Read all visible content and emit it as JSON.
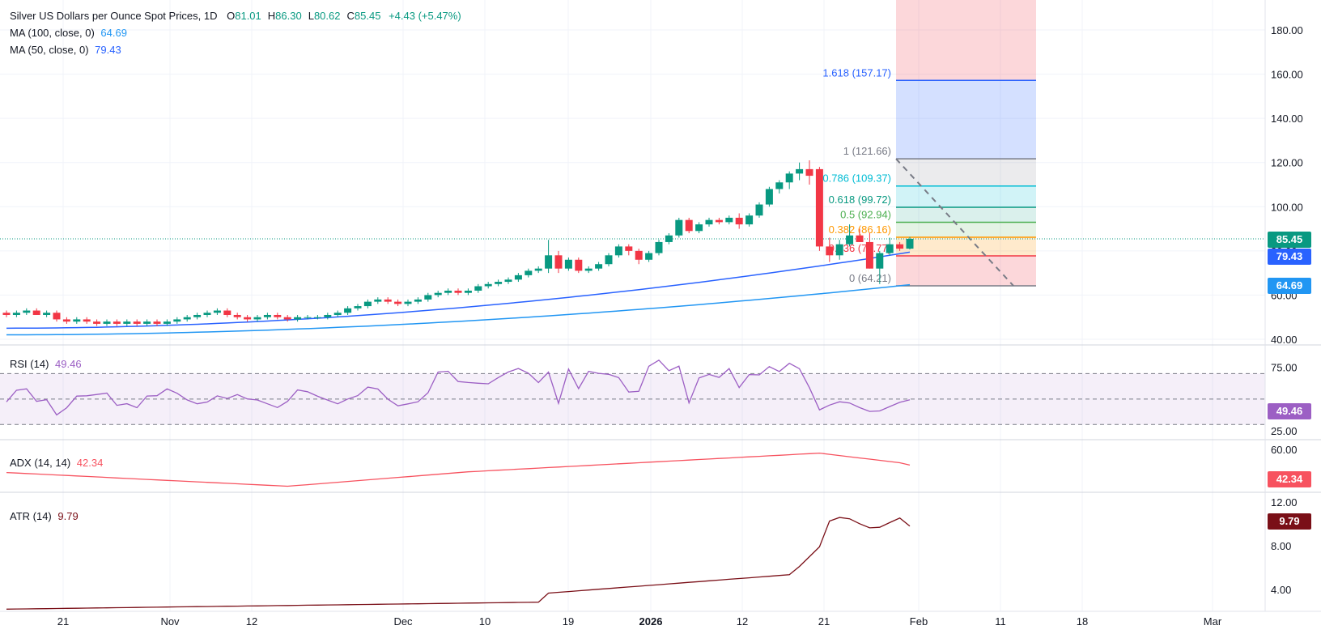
{
  "header": {
    "title": "Silver US Dollars per Ounce Spot Prices, 1D",
    "ohlc": [
      {
        "key": "O",
        "value": "81.01"
      },
      {
        "key": "H",
        "value": "86.30"
      },
      {
        "key": "L",
        "value": "80.62"
      },
      {
        "key": "C",
        "value": "85.45"
      }
    ],
    "change": "+4.43 (+5.47%)",
    "ma100_label": "MA (100, close, 0)",
    "ma100_value": "64.69",
    "ma50_label": "MA (50, close, 0)",
    "ma50_value": "79.43"
  },
  "colors": {
    "up": "#089981",
    "down": "#f23645",
    "ma50": "#2962ff",
    "ma100": "#2196f3",
    "rsi": "#9c5fc4",
    "adx": "#f7525f",
    "atr": "#7a0f17",
    "grid": "#f0f3fa"
  },
  "indicators": {
    "rsi": {
      "label": "RSI (14)",
      "value": "49.46"
    },
    "adx": {
      "label": "ADX (14, 14)",
      "value": "42.34"
    },
    "atr": {
      "label": "ATR (14)",
      "value": "9.79"
    }
  },
  "badges": {
    "price": "85.45",
    "ma50": "79.43",
    "ma100": "64.69",
    "rsi": "49.46",
    "adx": "42.34",
    "atr": "9.79"
  },
  "chart_data": {
    "type": "candlestick",
    "x_ticks": [
      "21",
      "Nov",
      "12",
      "Dec",
      "10",
      "19",
      "2026",
      "12",
      "21",
      "Feb",
      "11",
      "18",
      "Mar"
    ],
    "price_axis": {
      "ticks": [
        "40.00",
        "60.00",
        "80.00",
        "100.00",
        "120.00",
        "140.00",
        "160.00",
        "180.00"
      ],
      "ylim": [
        38,
        190
      ]
    },
    "rsi_axis": {
      "ticks": [
        "25.00",
        "75.00"
      ],
      "upper": 70,
      "middle": 50,
      "lower": 30
    },
    "adx_axis": {
      "ticks": [
        "60.00"
      ]
    },
    "atr_axis": {
      "ticks": [
        "4.00",
        "8.00",
        "12.00"
      ]
    },
    "fibonacci": [
      {
        "level": "1.618",
        "price": 157.17,
        "label": "1.618 (157.17)",
        "color": "#2962ff"
      },
      {
        "level": "1",
        "price": 121.66,
        "label": "1 (121.66)",
        "color": "#787b86"
      },
      {
        "level": "0.786",
        "price": 109.37,
        "label": "0.786 (109.37)",
        "color": "#00bcd4"
      },
      {
        "level": "0.618",
        "price": 99.72,
        "label": "0.618 (99.72)",
        "color": "#089981"
      },
      {
        "level": "0.5",
        "price": 92.94,
        "label": "0.5 (92.94)",
        "color": "#4caf50"
      },
      {
        "level": "0.382",
        "price": 86.16,
        "label": "0.382 (86.16)",
        "color": "#ff9800"
      },
      {
        "level": "0.236",
        "price": 77.77,
        "label": "0.236 (77.77)",
        "color": "#f23645"
      },
      {
        "level": "0",
        "price": 64.21,
        "label": "0 (64.21)",
        "color": "#787b86"
      }
    ],
    "candles": [
      [
        52,
        53,
        50,
        51
      ],
      [
        51,
        53,
        50,
        52
      ],
      [
        52,
        54,
        51,
        53
      ],
      [
        53,
        54,
        51,
        51
      ],
      [
        51,
        53,
        50,
        52
      ],
      [
        52,
        53,
        48,
        49
      ],
      [
        49,
        50,
        47,
        48
      ],
      [
        48,
        50,
        47,
        49
      ],
      [
        49,
        50,
        47,
        48
      ],
      [
        48,
        49,
        46,
        47
      ],
      [
        47,
        49,
        46,
        48
      ],
      [
        48,
        49,
        46,
        47
      ],
      [
        47,
        49,
        46,
        48
      ],
      [
        48,
        49,
        46,
        47
      ],
      [
        47,
        49,
        46,
        48
      ],
      [
        48,
        49,
        46,
        47
      ],
      [
        47,
        49,
        46,
        48
      ],
      [
        48,
        50,
        47,
        49
      ],
      [
        49,
        51,
        48,
        50
      ],
      [
        50,
        52,
        49,
        51
      ],
      [
        51,
        53,
        50,
        52
      ],
      [
        52,
        54,
        51,
        53
      ],
      [
        53,
        54,
        50,
        51
      ],
      [
        51,
        52,
        49,
        50
      ],
      [
        50,
        51,
        48,
        49
      ],
      [
        49,
        51,
        48,
        50
      ],
      [
        50,
        52,
        49,
        51
      ],
      [
        51,
        52,
        49,
        50
      ],
      [
        50,
        51,
        48,
        49
      ],
      [
        49,
        51,
        48,
        50
      ],
      [
        50,
        51,
        49,
        50
      ],
      [
        50,
        51,
        49,
        50
      ],
      [
        50,
        52,
        49,
        51
      ],
      [
        51,
        53,
        50,
        52
      ],
      [
        52,
        55,
        51,
        54
      ],
      [
        54,
        56,
        53,
        55
      ],
      [
        55,
        58,
        54,
        57
      ],
      [
        57,
        59,
        56,
        58
      ],
      [
        58,
        59,
        56,
        57
      ],
      [
        57,
        58,
        55,
        56
      ],
      [
        56,
        58,
        55,
        57
      ],
      [
        57,
        59,
        56,
        58
      ],
      [
        58,
        61,
        57,
        60
      ],
      [
        60,
        62,
        59,
        61
      ],
      [
        61,
        63,
        60,
        62
      ],
      [
        62,
        63,
        60,
        61
      ],
      [
        61,
        63,
        60,
        62
      ],
      [
        62,
        65,
        61,
        64
      ],
      [
        64,
        66,
        63,
        65
      ],
      [
        65,
        67,
        64,
        66
      ],
      [
        66,
        68,
        65,
        67
      ],
      [
        67,
        70,
        66,
        69
      ],
      [
        69,
        72,
        68,
        71
      ],
      [
        71,
        73,
        70,
        72
      ],
      [
        72,
        85,
        70,
        78
      ],
      [
        78,
        80,
        70,
        72
      ],
      [
        72,
        77,
        71,
        76
      ],
      [
        76,
        77,
        70,
        71
      ],
      [
        71,
        73,
        70,
        72
      ],
      [
        72,
        75,
        71,
        74
      ],
      [
        74,
        79,
        73,
        78
      ],
      [
        78,
        83,
        77,
        82
      ],
      [
        82,
        83,
        78,
        80
      ],
      [
        80,
        81,
        74,
        76
      ],
      [
        76,
        80,
        75,
        79
      ],
      [
        79,
        85,
        78,
        84
      ],
      [
        84,
        88,
        83,
        87
      ],
      [
        87,
        95,
        86,
        94
      ],
      [
        94,
        95,
        88,
        89
      ],
      [
        89,
        93,
        88,
        92
      ],
      [
        92,
        95,
        91,
        94
      ],
      [
        94,
        95,
        92,
        93
      ],
      [
        93,
        96,
        92,
        95
      ],
      [
        95,
        97,
        90,
        92
      ],
      [
        92,
        97,
        91,
        96
      ],
      [
        96,
        102,
        95,
        101
      ],
      [
        101,
        109,
        100,
        108
      ],
      [
        108,
        112,
        106,
        111
      ],
      [
        111,
        116,
        108,
        115
      ],
      [
        115,
        120,
        112,
        117
      ],
      [
        117,
        121,
        110,
        114
      ],
      [
        117,
        118,
        80,
        82
      ],
      [
        82,
        86,
        75,
        78
      ],
      [
        78,
        85,
        76,
        83
      ],
      [
        83,
        92,
        82,
        87
      ],
      [
        87,
        90,
        84,
        84
      ],
      [
        84,
        88,
        72,
        72
      ],
      [
        72,
        80,
        65,
        79
      ],
      [
        79,
        86,
        78,
        83
      ],
      [
        83,
        84,
        80,
        81
      ],
      [
        81.01,
        86.3,
        80.62,
        85.45
      ]
    ]
  }
}
